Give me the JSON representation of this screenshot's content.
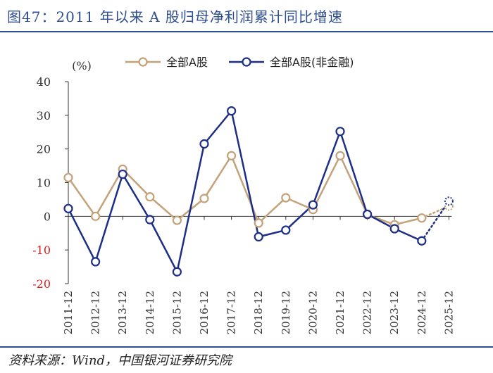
{
  "figure": {
    "title": "图47：2011 年以来 A 股归母净利润累计同比增速",
    "source": "资料来源：Wind，中国银河证券研究院"
  },
  "colors": {
    "series_all": "#c4a279",
    "series_nonfin": "#1d2e87",
    "rule": "#2f4f8f",
    "negative_tick": "#e02020",
    "axis": "#333333"
  },
  "chart_data": {
    "type": "line",
    "title": "",
    "unit_label": "(%)",
    "xlabel": "",
    "ylabel": "(%)",
    "ylim": [
      -20,
      40
    ],
    "yticks": [
      40,
      30,
      20,
      10,
      0,
      -10,
      -20
    ],
    "legend_position": "top",
    "categories": [
      "2011-12",
      "2012-12",
      "2013-12",
      "2014-12",
      "2015-12",
      "2016-12",
      "2017-12",
      "2018-12",
      "2019-12",
      "2020-12",
      "2021-12",
      "2022-12",
      "2023-12",
      "2024-12",
      "2025-12"
    ],
    "series": [
      {
        "name": "全部A股",
        "values": [
          11.5,
          0,
          14,
          5.8,
          -1.2,
          5.3,
          18,
          -2,
          5.5,
          2,
          18,
          0.5,
          -2.5,
          -0.5,
          3
        ],
        "forecast_from_index": 13
      },
      {
        "name": "全部A股(非金融)",
        "values": [
          2.3,
          -13.5,
          12.5,
          -1,
          -16.5,
          21.5,
          31.3,
          -6.1,
          -4.1,
          3.4,
          25.2,
          0.6,
          -3.7,
          -7.3,
          4.5
        ],
        "forecast_from_index": 13
      }
    ]
  }
}
